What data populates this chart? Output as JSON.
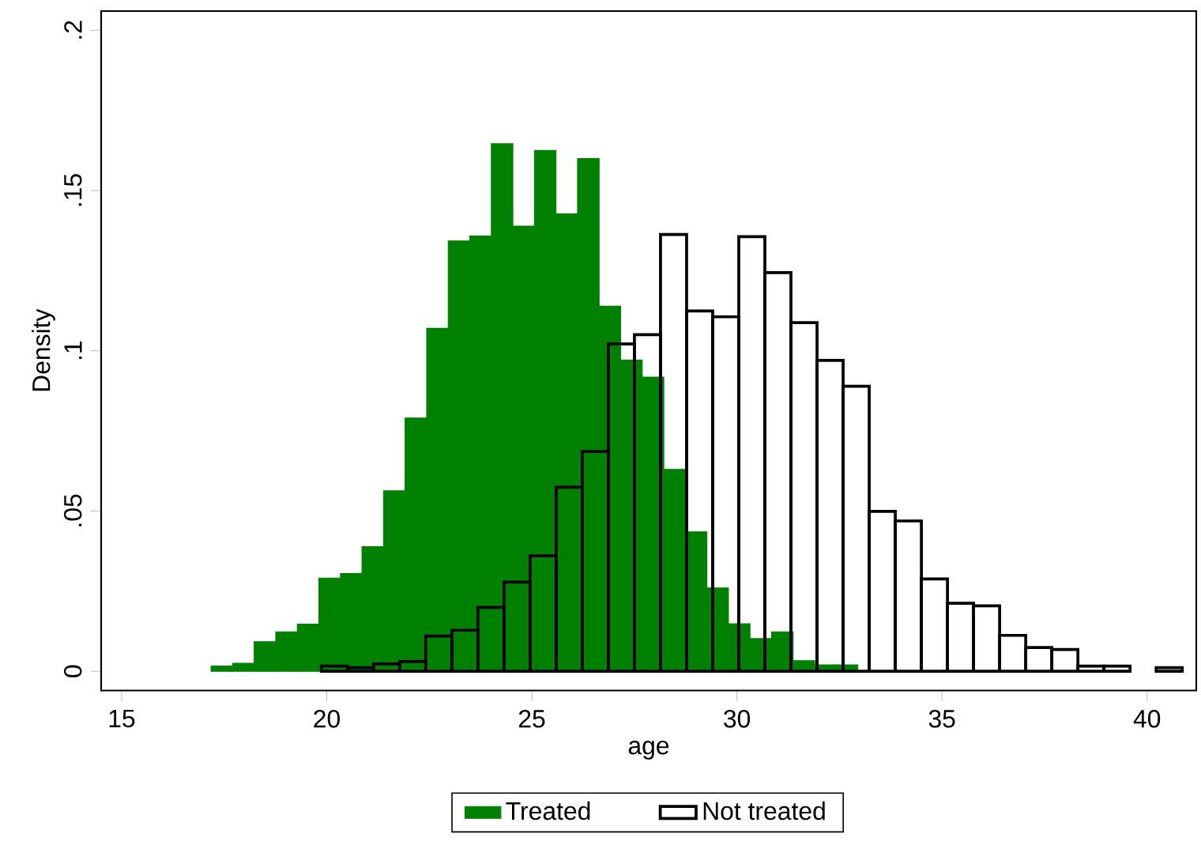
{
  "chart_data": {
    "type": "histogram",
    "xlabel": "age",
    "ylabel": "Density",
    "series": [
      {
        "name": "Treated",
        "color": "#008000",
        "values": [
          0.0016,
          0.0025,
          0.0092,
          0.0123,
          0.0147,
          0.0291,
          0.0305,
          0.0389,
          0.0563,
          0.079,
          0.107,
          0.1343,
          0.1358,
          0.1646,
          0.1389,
          0.1625,
          0.1427,
          0.16,
          0.1139,
          0.0971,
          0.0918,
          0.063,
          0.0435,
          0.026,
          0.0148,
          0.0102,
          0.0123,
          0.0033,
          0.002,
          0.002
        ]
      },
      {
        "name": "Not treated",
        "color": "#000000",
        "bins": [
          19.87,
          20.506,
          21.142,
          21.778,
          22.414,
          23.05,
          23.686,
          24.322,
          24.958,
          25.594,
          26.23,
          26.866,
          27.502,
          28.138,
          28.774,
          29.41,
          30.046,
          30.682,
          31.318,
          31.954,
          32.59,
          33.226,
          33.862,
          34.498,
          35.134,
          35.77,
          36.406,
          37.042,
          37.678,
          38.314,
          38.95,
          39.586,
          40.222,
          40.858
        ],
        "values": [
          0.0016,
          0.0011,
          0.0023,
          0.003,
          0.011,
          0.0128,
          0.0199,
          0.0278,
          0.036,
          0.0574,
          0.0686,
          0.1021,
          0.105,
          0.1363,
          0.1124,
          0.1106,
          0.1356,
          0.1244,
          0.1088,
          0.097,
          0.0889,
          0.0499,
          0.0469,
          0.0288,
          0.0212,
          0.0204,
          0.0112,
          0.0074,
          0.0068,
          0.0016,
          0.0016,
          null,
          0.0011
        ]
      }
    ],
    "bins": [
      17.18,
      17.706,
      18.231,
      18.757,
      19.282,
      19.808,
      20.334,
      20.859,
      21.385,
      21.91,
      22.436,
      22.962,
      23.487,
      24.013,
      24.538,
      25.064,
      25.59,
      26.115,
      26.641,
      27.166,
      27.692,
      28.218,
      28.743,
      29.269,
      29.794,
      30.32,
      30.846,
      31.371,
      31.897,
      32.422,
      32.948
    ],
    "xlim": [
      14.5,
      41.2
    ],
    "ylim": [
      -0.006,
      0.206
    ],
    "xticks": [
      {
        "value": 15,
        "label": "15"
      },
      {
        "value": 20,
        "label": "20"
      },
      {
        "value": 25,
        "label": "25"
      },
      {
        "value": 30,
        "label": "30"
      },
      {
        "value": 35,
        "label": "35"
      },
      {
        "value": 40,
        "label": "40"
      }
    ],
    "yticks": [
      {
        "value": 0,
        "label": "0"
      },
      {
        "value": 0.05,
        "label": ".05"
      },
      {
        "value": 0.1,
        "label": ".1"
      },
      {
        "value": 0.15,
        "label": ".15"
      },
      {
        "value": 0.2,
        "label": ".2"
      }
    ],
    "grid": false,
    "legend": "bottom"
  }
}
